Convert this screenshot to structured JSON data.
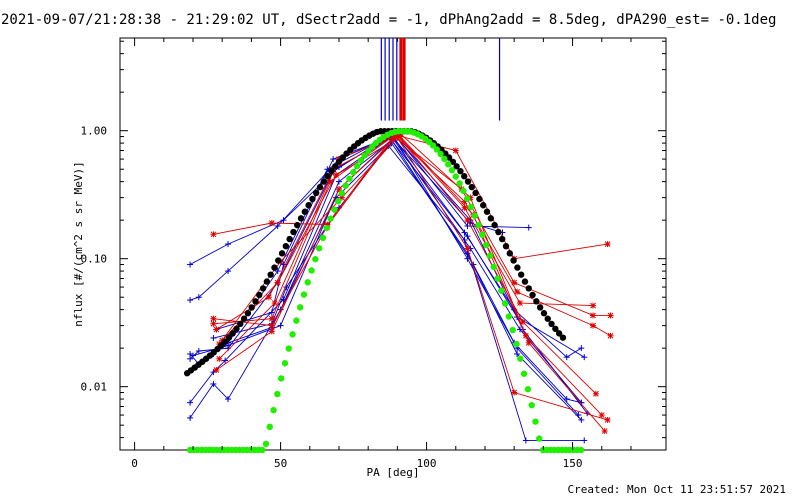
{
  "title": "2021-09-07/21:28:38 - 21:29:02 UT, dSectr2add = -1, dPhAng2add = 8.5deg, dPA290_est= -0.1deg",
  "footer": "Created: Mon Oct 11 23:51:57 2021",
  "colors": {
    "blue": "#0000cc",
    "red": "#dd0000",
    "black": "#000000",
    "green": "#22ee00"
  },
  "chart_data": {
    "type": "line",
    "xlabel": "PA [deg]",
    "ylabel": "nflux [#/(cm^2 s sr MeV)]",
    "xlim": [
      -5,
      182
    ],
    "ylim": [
      0.0032,
      5.3
    ],
    "yscale": "log",
    "x_ticks": [
      0,
      50,
      100,
      150
    ],
    "x_tick_labels": [
      "0",
      "50",
      "100",
      "150"
    ],
    "y_ticks": [
      0.01,
      0.1,
      1.0
    ],
    "y_tick_labels": [
      "0.01",
      "0.10",
      "1.00"
    ],
    "grid": false,
    "vertical_markers": [
      {
        "x": 84.5,
        "color": "blue",
        "from": 1.2
      },
      {
        "x": 85.8,
        "color": "blue",
        "from": 1.2
      },
      {
        "x": 87.2,
        "color": "blue",
        "from": 1.2
      },
      {
        "x": 88.5,
        "color": "blue",
        "from": 1.2
      },
      {
        "x": 89.8,
        "color": "blue",
        "from": 1.2
      },
      {
        "x": 91.2,
        "color": "red",
        "from": 1.2
      },
      {
        "x": 92.3,
        "color": "red",
        "from": 1.2
      },
      {
        "x": 125.0,
        "color": "blue",
        "from": 1.2
      }
    ],
    "series": [
      {
        "color": "blue",
        "x": [
          19,
          32,
          51,
          70,
          88,
          115,
          126
        ],
        "y": [
          0.09,
          0.13,
          0.2,
          0.52,
          0.9,
          0.19,
          0.16
        ]
      },
      {
        "color": "blue",
        "x": [
          19,
          22,
          32,
          49,
          70,
          89,
          114,
          135
        ],
        "y": [
          0.0475,
          0.05,
          0.08,
          0.18,
          0.6,
          0.94,
          0.18,
          0.175
        ]
      },
      {
        "color": "blue",
        "x": [
          19,
          22,
          32,
          49,
          66,
          87,
          113,
          130,
          148,
          153
        ],
        "y": [
          0.018,
          0.015,
          0.022,
          0.08,
          0.5,
          0.9,
          0.16,
          0.04,
          0.017,
          0.02
        ]
      },
      {
        "color": "blue",
        "x": [
          19,
          22,
          32,
          49,
          68,
          88,
          114,
          131,
          154
        ],
        "y": [
          0.0165,
          0.019,
          0.02,
          0.065,
          0.48,
          0.93,
          0.15,
          0.035,
          0.017
        ]
      },
      {
        "color": "blue",
        "x": [
          19,
          27,
          31,
          51,
          69,
          88,
          115,
          132,
          153
        ],
        "y": [
          0.0075,
          0.013,
          0.016,
          0.048,
          0.45,
          0.9,
          0.12,
          0.028,
          0.0075
        ]
      },
      {
        "color": "blue",
        "x": [
          19,
          27,
          32,
          50,
          70,
          89,
          114,
          130,
          148,
          153
        ],
        "y": [
          0.0057,
          0.0105,
          0.008,
          0.04,
          0.4,
          0.88,
          0.1,
          0.022,
          0.008,
          0.0075
        ]
      },
      {
        "color": "blue",
        "x": [
          20,
          29,
          32,
          50,
          70,
          88,
          116,
          131,
          152
        ],
        "y": [
          0.0175,
          0.02,
          0.021,
          0.03,
          0.35,
          0.85,
          0.09,
          0.02,
          0.006
        ]
      },
      {
        "color": "blue",
        "x": [
          27,
          32,
          47,
          69,
          88,
          114,
          131,
          153
        ],
        "y": [
          0.018,
          0.022,
          0.029,
          0.3,
          0.8,
          0.11,
          0.018,
          0.0055
        ]
      },
      {
        "color": "blue",
        "x": [
          27,
          47,
          52,
          70,
          87,
          113,
          134,
          154
        ],
        "y": [
          0.024,
          0.031,
          0.06,
          0.25,
          0.76,
          0.14,
          0.0038,
          0.0038
        ]
      },
      {
        "color": "blue",
        "x": [
          28,
          47,
          51,
          68,
          89,
          115,
          133,
          155
        ],
        "y": [
          0.028,
          0.038,
          0.09,
          0.6,
          0.92,
          0.2,
          0.028,
          0.0062
        ]
      },
      {
        "color": "red",
        "x": [
          27,
          47,
          66,
          89,
          110,
          130,
          162
        ],
        "y": [
          0.155,
          0.19,
          0.185,
          0.93,
          0.7,
          0.1,
          0.13
        ]
      },
      {
        "color": "red",
        "x": [
          27,
          47,
          66,
          89,
          112,
          130,
          157,
          163
        ],
        "y": [
          0.034,
          0.03,
          0.18,
          0.9,
          0.35,
          0.065,
          0.036,
          0.036
        ]
      },
      {
        "color": "red",
        "x": [
          27,
          47,
          67,
          89,
          113,
          131,
          157,
          163
        ],
        "y": [
          0.031,
          0.034,
          0.4,
          0.92,
          0.28,
          0.055,
          0.03,
          0.025
        ]
      },
      {
        "color": "red",
        "x": [
          28,
          46,
          68,
          90,
          113,
          132,
          157
        ],
        "y": [
          0.028,
          0.05,
          0.5,
          0.93,
          0.25,
          0.045,
          0.043
        ]
      },
      {
        "color": "red",
        "x": [
          28,
          47,
          70,
          90,
          114,
          133,
          158
        ],
        "y": [
          0.0135,
          0.027,
          0.35,
          0.92,
          0.2,
          0.032,
          0.0088
        ]
      },
      {
        "color": "red",
        "x": [
          29,
          48,
          70,
          91,
          115,
          134,
          160
        ],
        "y": [
          0.0165,
          0.045,
          0.6,
          0.95,
          0.3,
          0.025,
          0.006
        ]
      },
      {
        "color": "red",
        "x": [
          30,
          49,
          69,
          91,
          116,
          135,
          161
        ],
        "y": [
          0.023,
          0.065,
          0.45,
          0.9,
          0.22,
          0.022,
          0.0045
        ]
      },
      {
        "color": "red",
        "x": [
          29,
          50,
          71,
          90,
          114,
          130,
          162
        ],
        "y": [
          0.0215,
          0.095,
          0.3,
          0.88,
          0.12,
          0.009,
          0.0055
        ]
      },
      {
        "color": "black",
        "style": "dots",
        "model": {
          "pa0": 89.5,
          "sigma": 24.5,
          "floor": 0.045
        },
        "x_range": [
          18,
          147
        ]
      },
      {
        "color": "green",
        "style": "dots",
        "model": {
          "pa0": 92.0,
          "sigma": 19.8,
          "floor": 0.0
        },
        "x_range": [
          19,
          154
        ]
      }
    ]
  }
}
